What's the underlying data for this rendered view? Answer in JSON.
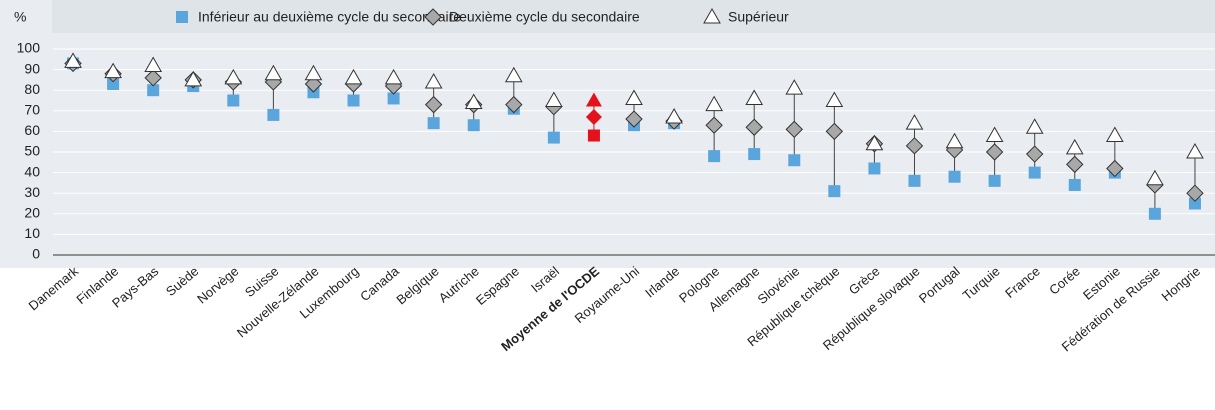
{
  "chart_data": {
    "type": "dumbbell",
    "y_label": "%",
    "categories": [
      "Danemark",
      "Finlande",
      "Pays-Bas",
      "Suède",
      "Norvège",
      "Suisse",
      "Nouvelle-Zélande",
      "Luxembourg",
      "Canada",
      "Belgique",
      "Autriche",
      "Espagne",
      "Israël",
      "Moyenne de l'OCDE",
      "Royaume-Uni",
      "Irlande",
      "Pologne",
      "Allemagne",
      "Slovénie",
      "République tchèque",
      "Grèce",
      "République slovaque",
      "Portugal",
      "Turquie",
      "France",
      "Corée",
      "Estonie",
      "Fédération de Russie",
      "Hongrie"
    ],
    "series": [
      {
        "name": "Inférieur au deuxième cycle du secondaire",
        "marker": "square",
        "color": "#5aa6dc",
        "values": [
          93,
          83,
          80,
          82,
          75,
          68,
          79,
          75,
          76,
          64,
          63,
          71,
          57,
          58,
          63,
          64,
          48,
          49,
          46,
          31,
          42,
          36,
          38,
          36,
          40,
          34,
          40,
          20,
          25
        ]
      },
      {
        "name": "Deuxième cycle du secondaire",
        "marker": "diamond",
        "color": "#a8a8a8",
        "values": [
          93,
          88,
          86,
          85,
          84,
          84,
          83,
          83,
          82,
          73,
          73,
          73,
          72,
          67,
          66,
          65,
          63,
          62,
          61,
          60,
          54,
          53,
          51,
          50,
          49,
          44,
          42,
          34,
          30
        ]
      },
      {
        "name": "Supérieur",
        "marker": "triangle",
        "color": "#ffffff",
        "values": [
          94,
          89,
          92,
          85,
          86,
          88,
          88,
          86,
          86,
          84,
          74,
          87,
          75,
          75,
          76,
          67,
          73,
          76,
          81,
          75,
          54,
          64,
          55,
          58,
          62,
          52,
          58,
          37,
          50
        ]
      }
    ],
    "highlight": {
      "index": 13,
      "color": "#e3121b"
    },
    "ylim": [
      0,
      100
    ],
    "yticks": [
      0,
      10,
      20,
      30,
      40,
      50,
      60,
      70,
      80,
      90,
      100
    ],
    "grid": true
  }
}
